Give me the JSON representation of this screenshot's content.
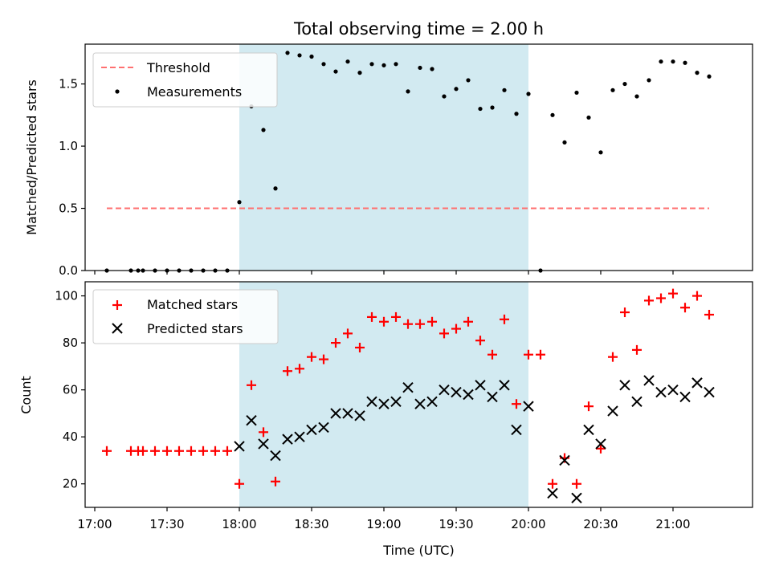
{
  "chart_data": [
    {
      "type": "scatter",
      "title": "Total observing time = 2.00 h",
      "xlabel": "",
      "ylabel": "Matched/Predicted stars",
      "xlim": [
        "16:56",
        "21:33"
      ],
      "ylim": [
        0,
        1.82
      ],
      "yticks": [
        "0.0",
        "0.5",
        "1.0",
        "1.5"
      ],
      "grid": false,
      "legend_position": "top-left",
      "shaded_span": {
        "start": "18:00",
        "end": "20:00",
        "color": "#add8e6"
      },
      "threshold": {
        "name": "Threshold",
        "value": 0.5,
        "x_start": "17:05",
        "x_end": "21:15",
        "color": "#ff7070"
      },
      "series": [
        {
          "name": "Measurements",
          "color": "#000000",
          "x": [
            "17:05",
            "17:15",
            "17:18",
            "17:20",
            "17:25",
            "17:30",
            "17:35",
            "17:40",
            "17:45",
            "17:50",
            "17:55",
            "18:00",
            "18:05",
            "18:10",
            "18:15",
            "18:20",
            "18:25",
            "18:30",
            "18:35",
            "18:40",
            "18:45",
            "18:50",
            "18:55",
            "19:00",
            "19:05",
            "19:10",
            "19:15",
            "19:20",
            "19:25",
            "19:30",
            "19:35",
            "19:40",
            "19:45",
            "19:50",
            "19:55",
            "20:00",
            "20:05",
            "20:10",
            "20:15",
            "20:20",
            "20:25",
            "20:30",
            "20:35",
            "20:40",
            "20:45",
            "20:50",
            "20:55",
            "21:00",
            "21:05",
            "21:10",
            "21:15"
          ],
          "y": [
            0,
            0,
            0,
            0,
            0,
            0,
            0,
            0,
            0,
            0,
            0,
            0.55,
            1.32,
            1.13,
            0.66,
            1.75,
            1.73,
            1.72,
            1.66,
            1.6,
            1.68,
            1.59,
            1.66,
            1.65,
            1.66,
            1.44,
            1.63,
            1.62,
            1.4,
            1.46,
            1.53,
            1.3,
            1.31,
            1.45,
            1.26,
            1.42,
            0,
            1.25,
            1.03,
            1.43,
            1.23,
            0.95,
            1.45,
            1.5,
            1.4,
            1.53,
            1.68,
            1.68,
            1.67,
            1.59,
            1.56
          ]
        }
      ]
    },
    {
      "type": "scatter",
      "title": "",
      "xlabel": "Time (UTC)",
      "ylabel": "Count",
      "xlim": [
        "16:56",
        "21:33"
      ],
      "ylim": [
        10,
        106
      ],
      "yticks": [
        "20",
        "40",
        "60",
        "80",
        "100"
      ],
      "xticks": [
        "17:00",
        "17:30",
        "18:00",
        "18:30",
        "19:00",
        "19:30",
        "20:00",
        "20:30",
        "21:00"
      ],
      "grid": false,
      "legend_position": "top-left",
      "shaded_span": {
        "start": "18:00",
        "end": "20:00",
        "color": "#add8e6"
      },
      "series": [
        {
          "name": "Matched stars",
          "marker": "+",
          "color": "#ff0000",
          "x": [
            "17:05",
            "17:15",
            "17:18",
            "17:20",
            "17:25",
            "17:30",
            "17:35",
            "17:40",
            "17:45",
            "17:50",
            "17:55",
            "18:00",
            "18:05",
            "18:10",
            "18:15",
            "18:20",
            "18:25",
            "18:30",
            "18:35",
            "18:40",
            "18:45",
            "18:50",
            "18:55",
            "19:00",
            "19:05",
            "19:10",
            "19:15",
            "19:20",
            "19:25",
            "19:30",
            "19:35",
            "19:40",
            "19:45",
            "19:50",
            "19:55",
            "20:00",
            "20:05",
            "20:10",
            "20:15",
            "20:20",
            "20:25",
            "20:30",
            "20:35",
            "20:40",
            "20:45",
            "20:50",
            "20:55",
            "21:00",
            "21:05",
            "21:10",
            "21:15"
          ],
          "y": [
            34,
            34,
            34,
            34,
            34,
            34,
            34,
            34,
            34,
            34,
            34,
            20,
            62,
            42,
            21,
            68,
            69,
            74,
            73,
            80,
            84,
            78,
            91,
            89,
            91,
            88,
            88,
            89,
            84,
            86,
            89,
            81,
            75,
            90,
            54,
            75,
            75,
            20,
            31,
            20,
            53,
            35,
            74,
            93,
            77,
            98,
            99,
            101,
            95,
            100,
            92
          ]
        },
        {
          "name": "Predicted stars",
          "marker": "x",
          "color": "#000000",
          "x": [
            "18:00",
            "18:05",
            "18:10",
            "18:15",
            "18:20",
            "18:25",
            "18:30",
            "18:35",
            "18:40",
            "18:45",
            "18:50",
            "18:55",
            "19:00",
            "19:05",
            "19:10",
            "19:15",
            "19:20",
            "19:25",
            "19:30",
            "19:35",
            "19:40",
            "19:45",
            "19:50",
            "19:55",
            "20:00",
            "20:10",
            "20:15",
            "20:20",
            "20:25",
            "20:30",
            "20:35",
            "20:40",
            "20:45",
            "20:50",
            "20:55",
            "21:00",
            "21:05",
            "21:10",
            "21:15"
          ],
          "y": [
            36,
            47,
            37,
            32,
            39,
            40,
            43,
            44,
            50,
            50,
            49,
            55,
            54,
            55,
            61,
            54,
            55,
            60,
            59,
            58,
            62,
            57,
            62,
            43,
            53,
            16,
            30,
            14,
            43,
            37,
            51,
            62,
            55,
            64,
            59,
            60,
            57,
            63,
            59
          ]
        }
      ]
    }
  ]
}
